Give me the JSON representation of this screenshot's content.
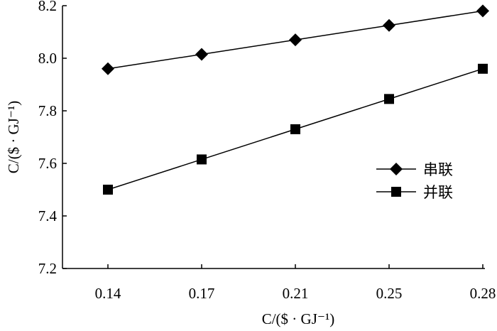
{
  "chart_data": {
    "type": "line",
    "title": "",
    "xlabel": "C/($ · GJ⁻¹)",
    "ylabel": "C/($ · GJ⁻¹)",
    "categories": [
      "0.14",
      "0.17",
      "0.21",
      "0.25",
      "0.28"
    ],
    "ylim": [
      7.2,
      8.2
    ],
    "yticks": [
      "7.2",
      "7.4",
      "7.6",
      "7.8",
      "8.0",
      "8.2"
    ],
    "grid": false,
    "legend_position": "right",
    "series": [
      {
        "name": "串联",
        "marker": "diamond",
        "values": [
          7.96,
          8.015,
          8.07,
          8.125,
          8.18
        ]
      },
      {
        "name": "并联",
        "marker": "square",
        "values": [
          7.5,
          7.615,
          7.73,
          7.845,
          7.96
        ]
      }
    ]
  }
}
